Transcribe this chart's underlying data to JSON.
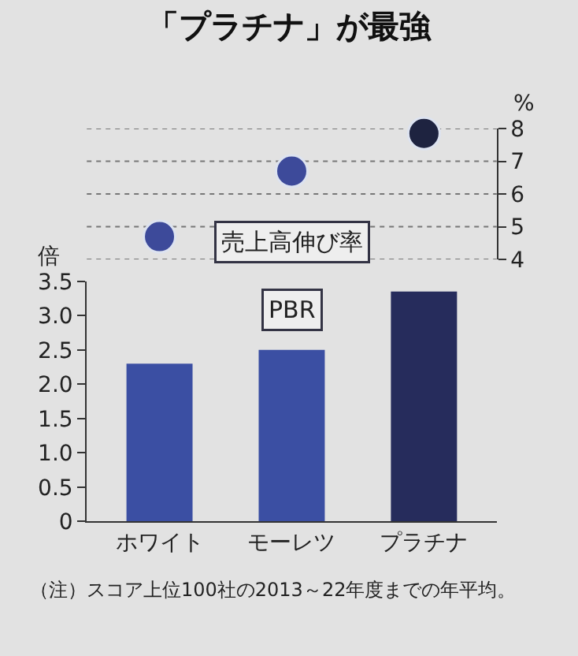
{
  "chart_data": [
    {
      "type": "scatter",
      "title": "「プラチナ」が最強",
      "categories": [
        null,
        null,
        null
      ],
      "series": [
        {
          "values": [
            4.7,
            6.7,
            7.85
          ],
          "colors": [
            "#3d4a9a",
            "#3d4a9a",
            "#1e2340"
          ],
          "axis": "y2"
        }
      ],
      "y2label": "%",
      "y2lim": [
        4,
        8
      ],
      "y2ticks": [
        4,
        5,
        6,
        7,
        8
      ],
      "grid": "y",
      "marker": "circle",
      "tick_labels": "y",
      "annotations": [
        "売上高伸び率"
      ]
    },
    {
      "type": "bar",
      "categories": [
        "ホワイト",
        "モーレツ",
        "プラチナ"
      ],
      "values": [
        2.3,
        2.5,
        3.35
      ],
      "colors": [
        "#3b4fa3",
        "#3b4fa3",
        "#262c5c"
      ],
      "ylabel": "倍",
      "ylim": [
        0,
        3.5
      ],
      "yticks": [
        0,
        {
          "value": 0.5,
          "label": "0.5"
        },
        {
          "value": 1,
          "label": "1.0"
        },
        1.5,
        {
          "value": 2,
          "label": "2.0"
        },
        2.5,
        {
          "value": 3,
          "label": "3.0"
        },
        3.5
      ],
      "annotations": [
        "PBR",
        "（注）スコア上位100社の2013～22年度までの年平均。"
      ]
    }
  ]
}
